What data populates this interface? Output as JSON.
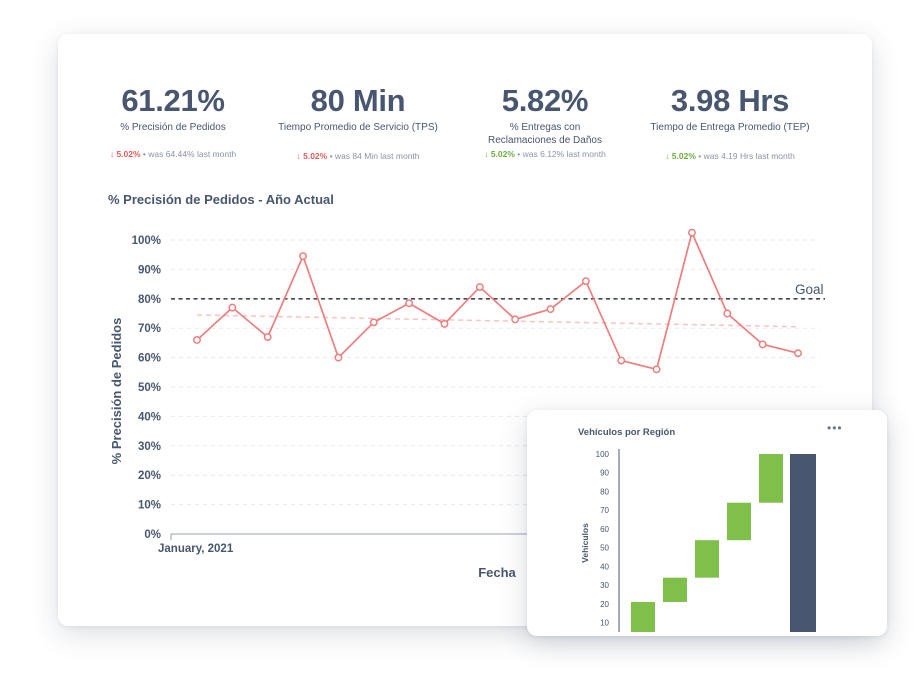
{
  "kpis": [
    {
      "value": "61.21%",
      "label": "% Precisión de Pedidos",
      "direction": "down",
      "delta": "5.02%",
      "was": "• was 64.44%",
      "period": "last month"
    },
    {
      "value": "80 Min",
      "label": "Tiempo Promedio de Servicio (TPS)",
      "direction": "down",
      "delta": "5.02%",
      "was": "• was 84 Min",
      "period": "last month"
    },
    {
      "value": "5.82%",
      "label": "% Entregas con Reclamaciones de Daños",
      "direction": "up",
      "delta": "5.02%",
      "was": "• was 6.12%",
      "period": "last month"
    },
    {
      "value": "3.98 Hrs",
      "label": "Tiempo de Entrega Promedio (TEP)",
      "direction": "up",
      "delta": "5.02%",
      "was": "• was 4.19 Hrs",
      "period": "last month"
    }
  ],
  "colors": {
    "negative": "#e05b5b",
    "positive": "#6cae3f",
    "line": "#ee7e7e",
    "trend": "#f7c3c3",
    "goal": "#3f4656",
    "waterfall_up": "#7ec04a",
    "waterfall_total": "#48566f"
  },
  "chart_data": [
    {
      "type": "line",
      "title": "% Precisión de Pedidos - Año Actual",
      "xlabel": "Fecha",
      "ylabel": "% Precisión de Pedidos",
      "ylim": [
        0,
        100
      ],
      "yticks": [
        "0%",
        "10%",
        "20%",
        "30%",
        "40%",
        "50%",
        "60%",
        "70%",
        "80%",
        "90%",
        "100%"
      ],
      "xticks": [
        "January, 2021"
      ],
      "grid": true,
      "goal": {
        "label": "Goal",
        "value": 80
      },
      "trend": {
        "start": 74.5,
        "end": 70.5
      },
      "values": [
        66,
        77,
        67,
        94.5,
        60,
        72,
        78.5,
        71.5,
        84,
        73,
        76.5,
        86,
        59,
        56,
        102.5,
        75,
        64.5,
        61.5
      ]
    },
    {
      "type": "bar",
      "subtype": "waterfall",
      "title": "Vehículos por Región",
      "ylabel": "Vehículos",
      "yticks": [
        "10",
        "20",
        "30",
        "40",
        "50",
        "60",
        "70",
        "80",
        "90",
        "100"
      ],
      "ylim": [
        5,
        100
      ],
      "steps": [
        [
          5,
          21
        ],
        [
          21,
          34
        ],
        [
          34,
          54
        ],
        [
          54,
          74
        ],
        [
          74,
          100
        ]
      ],
      "total": [
        5,
        100
      ]
    }
  ],
  "more_icon": "more-horizontal-icon"
}
